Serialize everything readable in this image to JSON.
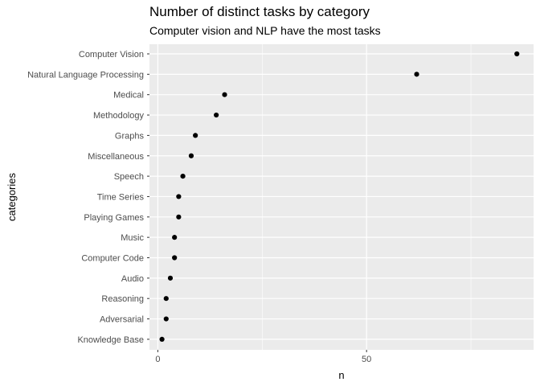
{
  "chart_data": {
    "type": "scatter",
    "title": "Number of distinct tasks by category",
    "subtitle": "Computer vision and NLP have the most tasks",
    "xlabel": "n",
    "ylabel": "categories",
    "xlim": [
      -2,
      90
    ],
    "xticks": [
      0,
      50
    ],
    "grid": true,
    "categories": [
      "Computer Vision",
      "Natural Language Processing",
      "Medical",
      "Methodology",
      "Graphs",
      "Miscellaneous",
      "Speech",
      "Time Series",
      "Playing Games",
      "Music",
      "Computer Code",
      "Audio",
      "Reasoning",
      "Adversarial",
      "Knowledge Base"
    ],
    "values": [
      86,
      62,
      16,
      14,
      9,
      8,
      6,
      5,
      5,
      4,
      4,
      3,
      2,
      2,
      1
    ],
    "colors": {
      "panel": "#ebebeb",
      "grid": "#ffffff",
      "point": "#000000",
      "tick": "#4d4d4d"
    }
  }
}
